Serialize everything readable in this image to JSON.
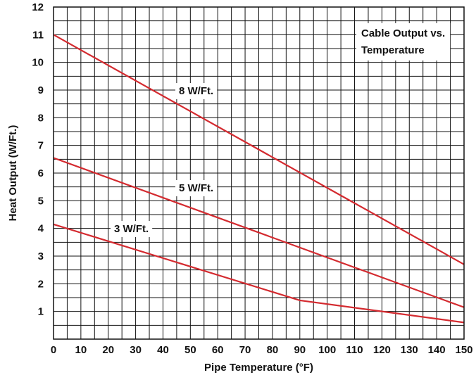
{
  "chart_data": {
    "type": "line",
    "title": "Cable Output vs. Temperature",
    "title_lines": [
      "Cable Output vs.",
      "Temperature"
    ],
    "xlabel": "Pipe Temperature (°F)",
    "ylabel": "Heat Output (W/Ft.)",
    "xlim": [
      0,
      150
    ],
    "ylim": [
      0,
      12
    ],
    "x_ticks": [
      0,
      10,
      20,
      30,
      40,
      50,
      60,
      70,
      80,
      90,
      100,
      110,
      120,
      130,
      140,
      150
    ],
    "y_ticks": [
      1,
      2,
      3,
      4,
      5,
      6,
      7,
      8,
      9,
      10,
      11,
      12
    ],
    "grid": true,
    "line_color": "#d42a2f",
    "series": [
      {
        "name": "8 W/Ft.",
        "x": [
          0,
          150
        ],
        "y": [
          11.0,
          2.7
        ]
      },
      {
        "name": "5 W/Ft.",
        "x": [
          0,
          150
        ],
        "y": [
          6.55,
          1.15
        ]
      },
      {
        "name": "3 W/Ft.",
        "x": [
          0,
          90,
          150
        ],
        "y": [
          4.15,
          1.4,
          0.6
        ]
      }
    ]
  }
}
